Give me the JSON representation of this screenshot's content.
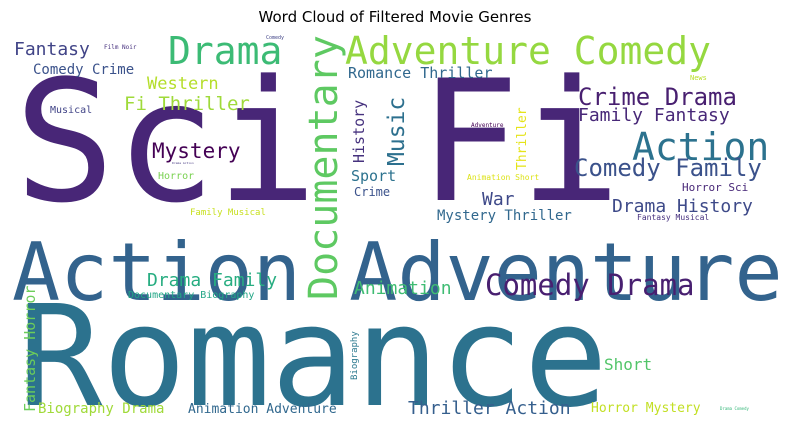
{
  "chart_data": {
    "type": "wordcloud",
    "title": "Word Cloud of Filtered Movie Genres",
    "words": [
      {
        "text": "Romance",
        "weight": 100,
        "color": "#2c728e",
        "orientation": "horizontal"
      },
      {
        "text": "Sci Fi",
        "weight": 98,
        "color": "#482677",
        "orientation": "horizontal"
      },
      {
        "text": "Action Adventure",
        "weight": 62,
        "color": "#33638d",
        "orientation": "horizontal"
      },
      {
        "text": "Adventure Comedy",
        "weight": 30,
        "color": "#95d840",
        "orientation": "horizontal"
      },
      {
        "text": "Documentary",
        "weight": 30,
        "color": "#5ec962",
        "orientation": "vertical"
      },
      {
        "text": "Drama",
        "weight": 30,
        "color": "#3cbb75",
        "orientation": "horizontal"
      },
      {
        "text": "Action",
        "weight": 29,
        "color": "#2c728e",
        "orientation": "horizontal"
      },
      {
        "text": "Comedy Drama",
        "weight": 24,
        "color": "#481f70",
        "orientation": "horizontal"
      },
      {
        "text": "Crime Drama",
        "weight": 20,
        "color": "#481f70",
        "orientation": "horizontal"
      },
      {
        "text": "Comedy Family",
        "weight": 20,
        "color": "#3b528b",
        "orientation": "horizontal"
      },
      {
        "text": "Music",
        "weight": 20,
        "color": "#2d708e",
        "orientation": "vertical"
      },
      {
        "text": "Mystery",
        "weight": 17,
        "color": "#440154",
        "orientation": "horizontal"
      },
      {
        "text": "Family Fantasy",
        "weight": 16,
        "color": "#482878",
        "orientation": "horizontal"
      },
      {
        "text": "Fi Thriller",
        "weight": 15,
        "color": "#9fda3a",
        "orientation": "horizontal"
      },
      {
        "text": "Drama Family",
        "weight": 15,
        "color": "#27ad81",
        "orientation": "horizontal"
      },
      {
        "text": "Animation",
        "weight": 15,
        "color": "#3fbc73",
        "orientation": "horizontal"
      },
      {
        "text": "Drama History",
        "weight": 15,
        "color": "#3e4a89",
        "orientation": "horizontal"
      },
      {
        "text": "War",
        "weight": 15,
        "color": "#3e4989",
        "orientation": "horizontal"
      },
      {
        "text": "Fantasy",
        "weight": 15,
        "color": "#414487",
        "orientation": "horizontal"
      },
      {
        "text": "Thriller Action",
        "weight": 15,
        "color": "#355f8d",
        "orientation": "horizontal"
      },
      {
        "text": "Western",
        "weight": 14,
        "color": "#b5de2b",
        "orientation": "horizontal"
      },
      {
        "text": "Romance Thriller",
        "weight": 13,
        "color": "#31688e",
        "orientation": "horizontal"
      },
      {
        "text": "Sport",
        "weight": 13,
        "color": "#2c728e",
        "orientation": "horizontal"
      },
      {
        "text": "Short",
        "weight": 13,
        "color": "#52c569",
        "orientation": "horizontal"
      },
      {
        "text": "Comedy Crime",
        "weight": 12,
        "color": "#3b528b",
        "orientation": "horizontal"
      },
      {
        "text": "History",
        "weight": 12,
        "color": "#46327e",
        "orientation": "vertical"
      },
      {
        "text": "Mystery Thriller",
        "weight": 12,
        "color": "#31688e",
        "orientation": "horizontal"
      },
      {
        "text": "Biography Drama",
        "weight": 12,
        "color": "#a0da39",
        "orientation": "horizontal"
      },
      {
        "text": "Fantasy Horror",
        "weight": 12,
        "color": "#6ccd5a",
        "orientation": "vertical"
      },
      {
        "text": "Horror Mystery",
        "weight": 12,
        "color": "#c2df23",
        "orientation": "horizontal"
      },
      {
        "text": "Animation Adventure",
        "weight": 11,
        "color": "#31688e",
        "orientation": "horizontal"
      },
      {
        "text": "Thriller",
        "weight": 11,
        "color": "#e5e419",
        "orientation": "vertical"
      },
      {
        "text": "Crime",
        "weight": 10,
        "color": "#3b528b",
        "orientation": "horizontal"
      },
      {
        "text": "Horror Sci",
        "weight": 9,
        "color": "#482878",
        "orientation": "horizontal"
      },
      {
        "text": "Documentary Biography",
        "weight": 9,
        "color": "#21a685",
        "orientation": "horizontal"
      },
      {
        "text": "Horror",
        "weight": 8,
        "color": "#7ad151",
        "orientation": "horizontal"
      },
      {
        "text": "Musical",
        "weight": 8,
        "color": "#414487",
        "orientation": "horizontal"
      },
      {
        "text": "Biography",
        "weight": 8,
        "color": "#2a788e",
        "orientation": "vertical"
      },
      {
        "text": "Family Musical",
        "weight": 8,
        "color": "#c8e020",
        "orientation": "horizontal"
      },
      {
        "text": "Fantasy Musical",
        "weight": 7,
        "color": "#46307e",
        "orientation": "horizontal"
      },
      {
        "text": "Animation Short",
        "weight": 7,
        "color": "#dde318",
        "orientation": "horizontal"
      },
      {
        "text": "News",
        "weight": 6,
        "color": "#b8de29",
        "orientation": "horizontal"
      },
      {
        "text": "Film Noir",
        "weight": 5,
        "color": "#46307e",
        "orientation": "horizontal"
      },
      {
        "text": "Adventure",
        "weight": 5,
        "color": "#440154",
        "orientation": "horizontal"
      },
      {
        "text": "Comedy",
        "weight": 4,
        "color": "#414487",
        "orientation": "horizontal"
      },
      {
        "text": "Drama Comedy",
        "weight": 4,
        "color": "#35b779",
        "orientation": "horizontal"
      },
      {
        "text": "Drama Action",
        "weight": 3,
        "color": "#453882",
        "orientation": "horizontal"
      }
    ]
  }
}
